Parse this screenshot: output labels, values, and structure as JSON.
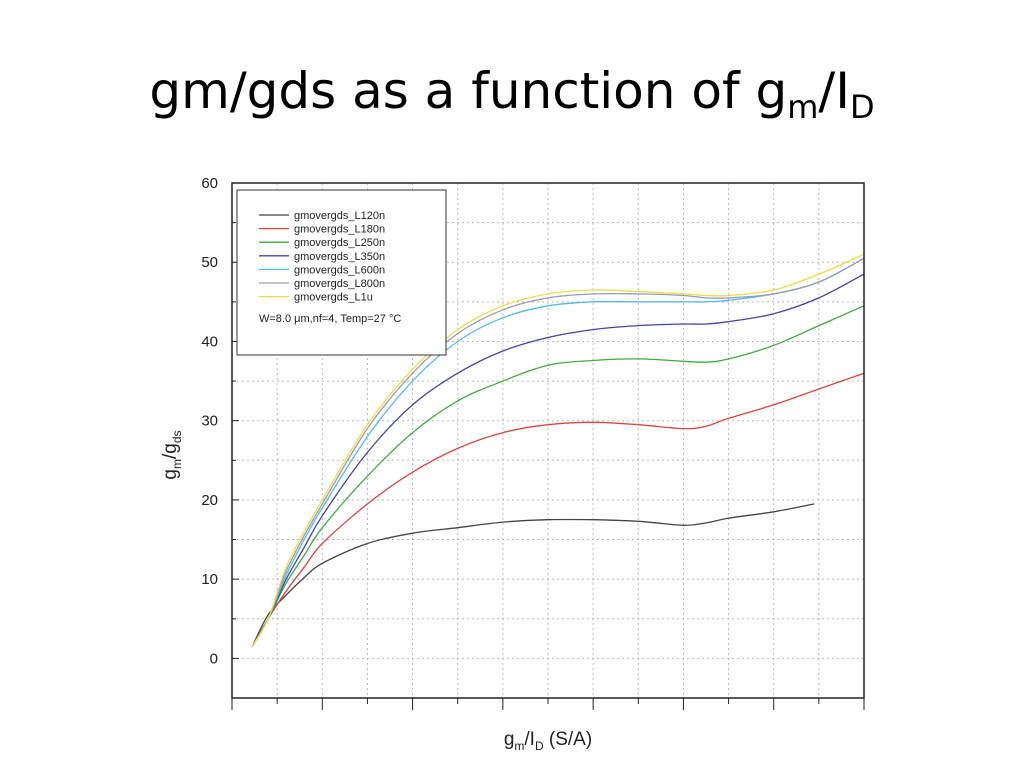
{
  "slide": {
    "title_main": "gm/gds as a function of g",
    "title_sub_m": "m",
    "title_slash": "/I",
    "title_sub_d": "D"
  },
  "chart_data": {
    "type": "line",
    "title": "",
    "xlabel": "gm/ID (S/A)",
    "ylabel": "gm/gds",
    "xlabel_parts": {
      "main": "g",
      "sub1": "m",
      "mid": "/I",
      "sub2": "D",
      "unit": " (S/A)"
    },
    "ylabel_parts": {
      "main": "g",
      "sub1": "m",
      "mid": "/g",
      "sub2": "ds"
    },
    "ylim": [
      -5,
      60
    ],
    "xlim": [
      0,
      14
    ],
    "yticks": [
      0,
      10,
      20,
      30,
      40,
      50,
      60
    ],
    "grid": true,
    "legend_placement": "top-left",
    "legend_note": "W=8.0 μm,nf=4, Temp=27 °C",
    "series": [
      {
        "name": "gmovergds_L120n",
        "color": "#444444",
        "x": [
          0.45,
          0.8,
          1.2,
          1.6,
          2,
          3,
          4,
          5,
          6,
          7,
          8,
          9,
          10,
          10.5,
          11,
          12,
          12.9
        ],
        "y": [
          1.5,
          5.5,
          8,
          10.2,
          12,
          14.5,
          15.8,
          16.5,
          17.2,
          17.5,
          17.5,
          17.3,
          16.8,
          17.1,
          17.7,
          18.5,
          19.5
        ]
      },
      {
        "name": "gmovergds_L180n",
        "color": "#dd4444",
        "x": [
          0.45,
          0.8,
          1.2,
          1.6,
          2,
          3,
          4,
          5,
          6,
          7,
          8,
          9,
          10,
          10.5,
          11,
          12,
          13,
          14
        ],
        "y": [
          1.5,
          5,
          8.5,
          11.5,
          14.5,
          19.5,
          23.5,
          26.5,
          28.5,
          29.5,
          29.8,
          29.5,
          29,
          29.3,
          30.3,
          32,
          34,
          36
        ]
      },
      {
        "name": "gmovergds_L250n",
        "color": "#44aa44",
        "x": [
          0.45,
          0.8,
          1.2,
          1.6,
          2,
          3,
          4,
          5,
          6,
          7,
          8,
          9,
          10,
          10.5,
          11,
          12,
          13,
          14
        ],
        "y": [
          1.5,
          5,
          9.5,
          13,
          16.5,
          23,
          28.5,
          32.5,
          35,
          37,
          37.6,
          37.8,
          37.5,
          37.4,
          37.8,
          39.5,
          42,
          44.5
        ]
      },
      {
        "name": "gmovergds_L350n",
        "color": "#4444aa",
        "x": [
          0.45,
          0.8,
          1.2,
          1.6,
          2,
          3,
          4,
          5,
          6,
          7,
          8,
          9,
          10,
          10.5,
          11,
          12,
          13,
          14
        ],
        "y": [
          1.5,
          5,
          10,
          14,
          18,
          26,
          32,
          36,
          38.8,
          40.5,
          41.5,
          42,
          42.2,
          42.2,
          42.5,
          43.5,
          45.5,
          48.5
        ]
      },
      {
        "name": "gmovergds_L600n",
        "color": "#55bbee",
        "x": [
          0.45,
          0.8,
          1.2,
          1.6,
          2,
          3,
          4,
          5,
          6,
          7,
          8,
          9,
          10,
          10.5,
          11,
          12,
          13,
          14
        ],
        "y": [
          1.5,
          5,
          10.5,
          15,
          19,
          28,
          35,
          40,
          43,
          44.5,
          45,
          45,
          45,
          45,
          45.2,
          46,
          47.5,
          50.5
        ]
      },
      {
        "name": "gmovergds_L800n",
        "color": "#9999bb",
        "x": [
          0.45,
          0.8,
          1.2,
          1.6,
          2,
          3,
          4,
          5,
          6,
          7,
          8,
          9,
          10,
          10.5,
          11,
          12,
          13,
          14
        ],
        "y": [
          1.5,
          5,
          11,
          15.5,
          19.5,
          29,
          36,
          41,
          44,
          45.5,
          46,
          46,
          45.8,
          45.5,
          45.5,
          46,
          47.5,
          50.5
        ]
      },
      {
        "name": "gmovergds_L1u",
        "color": "#eedd44",
        "x": [
          0.45,
          0.8,
          1.2,
          1.6,
          2,
          3,
          4,
          5,
          6,
          7,
          8,
          9,
          10,
          10.5,
          11,
          12,
          13,
          14
        ],
        "y": [
          1.5,
          5,
          11.5,
          16,
          20,
          29.5,
          36.5,
          41.5,
          44.5,
          46,
          46.5,
          46.3,
          46,
          45.8,
          45.8,
          46.5,
          48.5,
          51
        ]
      }
    ]
  }
}
